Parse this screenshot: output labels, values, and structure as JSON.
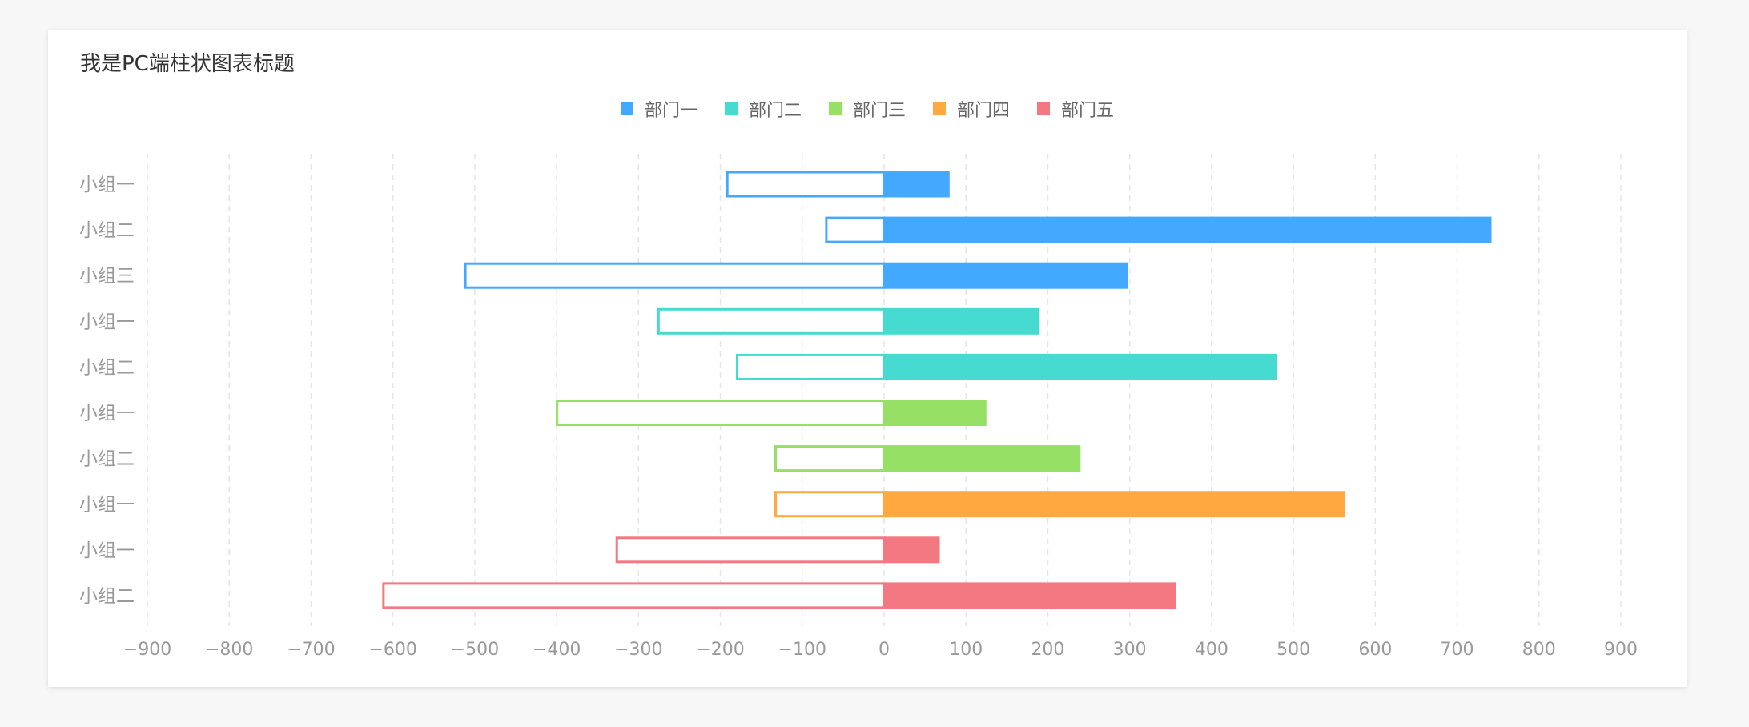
{
  "chart_data": {
    "type": "bar",
    "orientation": "horizontal",
    "title": "我是PC端柱状图表标题",
    "xlim": [
      -900,
      900
    ],
    "x_ticks": [
      -900,
      -800,
      -700,
      -600,
      -500,
      -400,
      -300,
      -200,
      -100,
      0,
      100,
      200,
      300,
      400,
      500,
      600,
      700,
      800,
      900
    ],
    "grid": "vertical dashed",
    "legend_placement": "top-center",
    "series": [
      {
        "name": "部门一",
        "color": "#42a9ff"
      },
      {
        "name": "部门二",
        "color": "#45dbd1"
      },
      {
        "name": "部门三",
        "color": "#96e065"
      },
      {
        "name": "部门四",
        "color": "#ffa940"
      },
      {
        "name": "部门五",
        "color": "#f47882"
      }
    ],
    "rows": [
      {
        "label": "小组一",
        "series": 0,
        "positive": 80,
        "negative": -193
      },
      {
        "label": "小组二",
        "series": 0,
        "positive": 742,
        "negative": -72
      },
      {
        "label": "小组三",
        "series": 0,
        "positive": 298,
        "negative": -513
      },
      {
        "label": "小组一",
        "series": 1,
        "positive": 190,
        "negative": -277
      },
      {
        "label": "小组二",
        "series": 1,
        "positive": 480,
        "negative": -181
      },
      {
        "label": "小组一",
        "series": 2,
        "positive": 125,
        "negative": -401
      },
      {
        "label": "小组二",
        "series": 2,
        "positive": 240,
        "negative": -134
      },
      {
        "label": "小组一",
        "series": 3,
        "positive": 563,
        "negative": -134
      },
      {
        "label": "小组一",
        "series": 4,
        "positive": 68,
        "negative": -328
      },
      {
        "label": "小组二",
        "series": 4,
        "positive": 357,
        "negative": -613
      }
    ]
  }
}
